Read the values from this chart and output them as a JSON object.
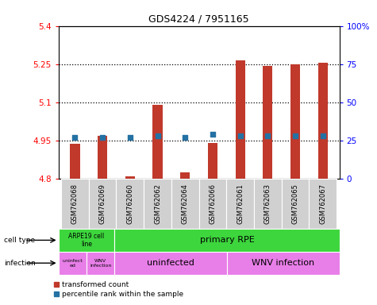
{
  "title": "GDS4224 / 7951165",
  "samples": [
    "GSM762068",
    "GSM762069",
    "GSM762060",
    "GSM762062",
    "GSM762064",
    "GSM762066",
    "GSM762061",
    "GSM762063",
    "GSM762065",
    "GSM762067"
  ],
  "transformed_counts": [
    4.935,
    4.968,
    4.808,
    5.088,
    4.825,
    4.938,
    5.265,
    5.243,
    5.248,
    5.255
  ],
  "percentile_ranks": [
    27,
    27,
    27,
    28,
    27,
    29,
    28,
    28,
    28,
    28
  ],
  "ylim_left": [
    4.8,
    5.4
  ],
  "ylim_right": [
    0,
    100
  ],
  "yticks_left": [
    4.8,
    4.95,
    5.1,
    5.25,
    5.4
  ],
  "yticks_right": [
    0,
    25,
    50,
    75,
    100
  ],
  "ytick_labels_left": [
    "4.8",
    "4.95",
    "5.1",
    "5.25",
    "5.4"
  ],
  "ytick_labels_right": [
    "0",
    "25",
    "50",
    "75",
    "100%"
  ],
  "bar_color": "#c0392b",
  "dot_color": "#2471a3",
  "dotted_lines": [
    4.95,
    5.1,
    5.25
  ],
  "bar_width": 0.35,
  "legend_red_label": "transformed count",
  "legend_blue_label": "percentile rank within the sample",
  "cell_type_green": "#3dd63d",
  "infection_pink": "#e87ee8",
  "sample_bg": "#d0d0d0"
}
